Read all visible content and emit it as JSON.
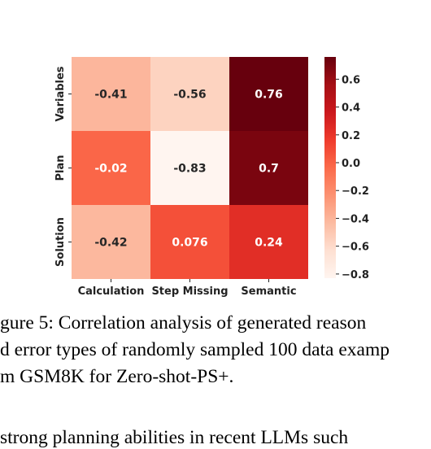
{
  "chart_data": {
    "type": "heatmap",
    "x_categories": [
      "Calculation",
      "Step Missing",
      "Semantic"
    ],
    "y_categories": [
      "Variables",
      "Plan",
      "Solution"
    ],
    "values": [
      [
        -0.41,
        -0.56,
        0.76
      ],
      [
        -0.02,
        -0.83,
        0.7
      ],
      [
        -0.42,
        0.076,
        0.24
      ]
    ],
    "cell_labels": [
      [
        "-0.41",
        "-0.56",
        "0.76"
      ],
      [
        "-0.02",
        "-0.83",
        "0.7"
      ],
      [
        "-0.42",
        "0.076",
        "0.24"
      ]
    ],
    "colormap": "Reds",
    "vmin": -0.83,
    "vmax": 0.76,
    "colorbar_ticks": [
      0.6,
      0.4,
      0.2,
      0.0,
      -0.2,
      -0.4,
      -0.6,
      -0.8
    ],
    "colorbar_tick_labels": [
      "0.6",
      "0.4",
      "0.2",
      "0.0",
      "−0.2",
      "−0.4",
      "−0.6",
      "−0.8"
    ]
  },
  "caption": {
    "line1": "gure 5: Correlation analysis of generated reason",
    "line2": "d error types of randomly sampled 100 data examp",
    "line3": "m GSM8K for Zero-shot-PS+."
  },
  "body_text": "strong planning abilities in recent LLMs such"
}
